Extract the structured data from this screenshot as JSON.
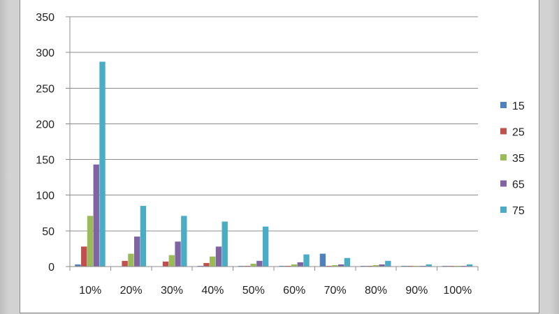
{
  "chart_data": {
    "type": "bar",
    "title": "",
    "xlabel": "",
    "ylabel": "",
    "ylim": [
      0,
      350
    ],
    "yticks": [
      0,
      50,
      100,
      150,
      200,
      250,
      300,
      350
    ],
    "grid": "horizontal",
    "legend_position": "right",
    "categories": [
      "10%",
      "20%",
      "30%",
      "40%",
      "50%",
      "60%",
      "70%",
      "80%",
      "90%",
      "100%"
    ],
    "series": [
      {
        "name": "15",
        "color": "#4f81bd",
        "values": [
          3,
          0,
          0,
          1,
          1,
          1,
          18,
          1,
          1,
          1
        ]
      },
      {
        "name": "25",
        "color": "#c0504d",
        "values": [
          28,
          8,
          7,
          5,
          1,
          1,
          1,
          1,
          1,
          1
        ]
      },
      {
        "name": "35",
        "color": "#9bbb59",
        "values": [
          71,
          18,
          16,
          14,
          4,
          3,
          2,
          2,
          1,
          1
        ]
      },
      {
        "name": "65",
        "color": "#8064a2",
        "values": [
          143,
          42,
          35,
          28,
          8,
          6,
          3,
          3,
          1,
          1
        ]
      },
      {
        "name": "75",
        "color": "#4bacc6",
        "values": [
          287,
          85,
          71,
          63,
          56,
          17,
          12,
          8,
          3,
          3
        ]
      }
    ]
  }
}
